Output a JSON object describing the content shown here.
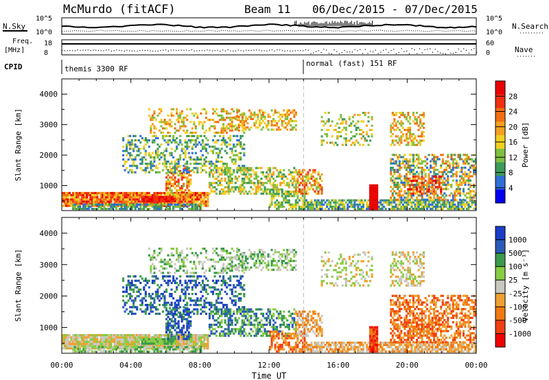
{
  "header": {
    "station": "McMurdo (fitACF)",
    "beam": "Beam 11",
    "date_range": "06/Dec/2015 - 07/Dec/2015"
  },
  "status": {
    "nsky_label": "N.Sky",
    "nsearch_label": "N.Search",
    "noise_ticks": [
      "10^5",
      "10^0"
    ],
    "freq_label_top": "Freq.",
    "freq_label_unit": "[MHz]",
    "freq_ticks": [
      "18",
      "8"
    ],
    "nave_label": "Nave",
    "nave_ticks": [
      "60",
      "0"
    ],
    "cpid_label": "CPID",
    "cpid_segments": [
      {
        "name": "themis 3300 RF",
        "start_hour": 0
      },
      {
        "name": "normal (fast) 151 RF",
        "start_hour": 14
      }
    ]
  },
  "colors": {
    "power_scale": [
      "#0000f0",
      "#2f6fd8",
      "#3d9a5a",
      "#7fbf3f",
      "#f0d020",
      "#f5a020",
      "#f07010",
      "#f03010",
      "#e80000"
    ],
    "velocity_scale": [
      "#1a3cc8",
      "#2a5ab8",
      "#3a9a4a",
      "#88cc44",
      "#c8c8c0",
      "#f0a030",
      "#f07a10",
      "#f04010",
      "#f00000"
    ]
  },
  "chart_data": [
    {
      "type": "heatmap",
      "panel": "power",
      "ylabel": "Slant Range [km]",
      "ylim": [
        180,
        4500
      ],
      "yticks": [
        1000,
        2000,
        3000,
        4000
      ],
      "colorbar_label": "Power [dB]",
      "colorbar_ticks": [
        "4",
        "8",
        "12",
        "16",
        "20",
        "24",
        "28"
      ],
      "clim": [
        0,
        30
      ]
    },
    {
      "type": "heatmap",
      "panel": "velocity",
      "ylabel": "Slant Range [km]",
      "ylim": [
        180,
        4500
      ],
      "yticks": [
        1000,
        2000,
        3000,
        4000
      ],
      "colorbar_label": "Velocity [m s⁻¹]",
      "colorbar_ticks": [
        "1000",
        "500",
        "100",
        "25",
        "-25",
        "-100",
        "-500",
        "-1000"
      ]
    }
  ],
  "xaxis": {
    "label": "Time UT",
    "xlim_hours": [
      0,
      24
    ],
    "tick_labels": [
      "00:00",
      "04:00",
      "08:00",
      "12:00",
      "16:00",
      "20:00",
      "00:00"
    ]
  }
}
